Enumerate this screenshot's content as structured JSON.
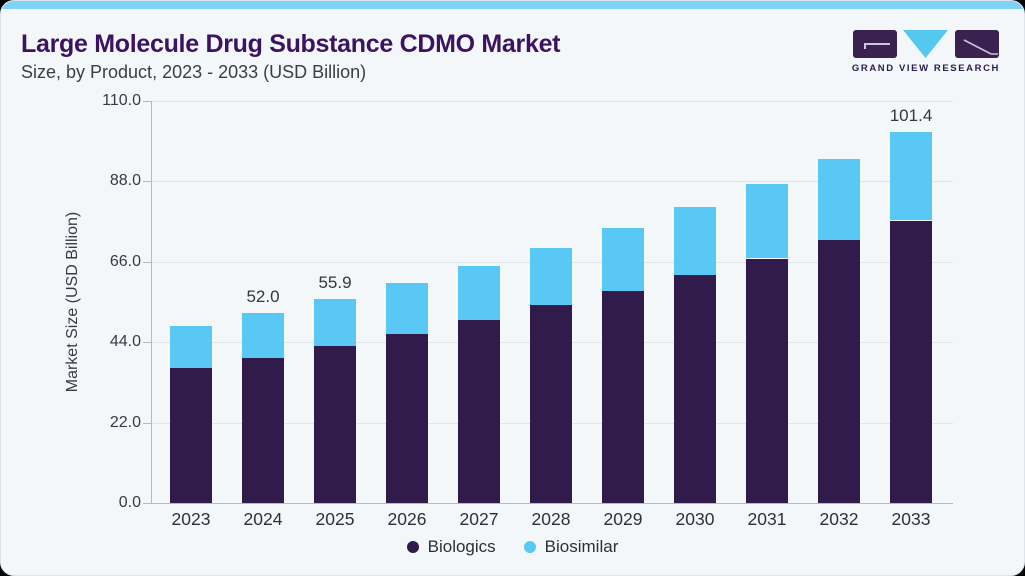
{
  "header": {
    "title": "Large Molecule Drug Substance CDMO Market",
    "subtitle": "Size, by Product, 2023 - 2033 (USD Billion)"
  },
  "logo": {
    "text": "GRAND VIEW RESEARCH",
    "mark_icons": [
      "gvr-g-block-icon",
      "gvr-v-triangle-icon",
      "gvr-r-block-icon"
    ]
  },
  "theme": {
    "accent": "#7dd2f5",
    "card_bg": "#f3f7fa",
    "title": "#3c1361",
    "subtitle_text": "#3d3d42",
    "axis": "#b3bac2",
    "grid": "#dde4ea",
    "logo_purple": "#3a2150",
    "logo_blue": "#55c8f0",
    "logo_text": "#2f1a50"
  },
  "chart_data": {
    "type": "bar",
    "stacked": true,
    "title": "Large Molecule Drug Substance CDMO Market",
    "subtitle": "Size, by Product, 2023 - 2033 (USD Billion)",
    "xlabel": "",
    "ylabel": "Market Size (USD Billion)",
    "categories": [
      "2023",
      "2024",
      "2025",
      "2026",
      "2027",
      "2028",
      "2029",
      "2030",
      "2031",
      "2032",
      "2033"
    ],
    "series": [
      {
        "name": "Biologics",
        "color": "#311b4a",
        "values": [
          37.0,
          39.8,
          43.0,
          46.3,
          50.2,
          54.2,
          58.1,
          62.3,
          66.9,
          71.9,
          77.3
        ]
      },
      {
        "name": "Biosimilar",
        "color": "#59c8f4",
        "values": [
          11.4,
          12.2,
          12.9,
          13.9,
          14.7,
          15.7,
          17.2,
          18.8,
          20.5,
          22.2,
          24.1
        ]
      }
    ],
    "totals": [
      48.4,
      52.0,
      55.9,
      60.2,
      64.9,
      69.9,
      75.3,
      81.1,
      87.4,
      94.1,
      101.4
    ],
    "total_labels": {
      "2024": "52.0",
      "2025": "55.9",
      "2033": "101.4"
    },
    "yticks": [
      "0.0",
      "22.0",
      "44.0",
      "66.0",
      "88.0",
      "110.0"
    ],
    "ylim": [
      0,
      110
    ],
    "grid": true,
    "legend_position": "bottom"
  }
}
